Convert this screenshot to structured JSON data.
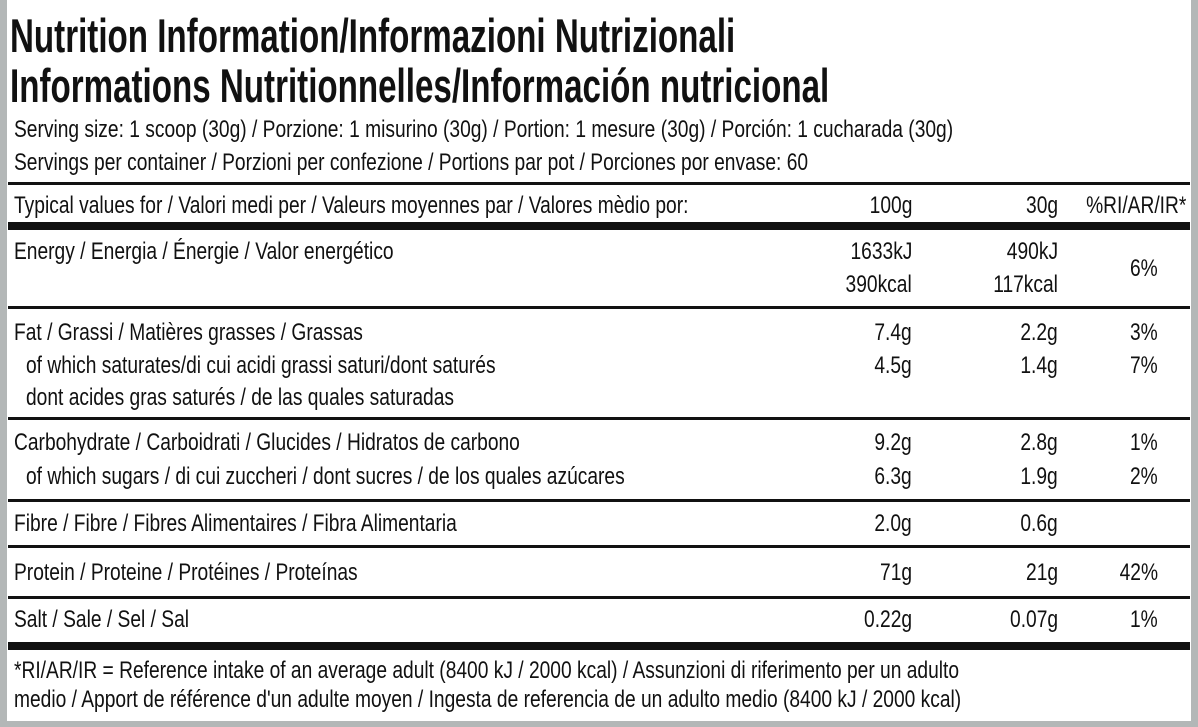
{
  "title": [
    "Nutrition Information/Informazioni Nutrizionali",
    "Informations Nutritionnelles/Información nutricional"
  ],
  "serving_size": "Serving size: 1 scoop (30g) / Porzione: 1 misurino (30g) / Portion: 1 mesure (30g) / Porción: 1 cucharada (30g)",
  "servings_per_container": "Servings per container / Porzioni per confezione / Portions par pot / Porciones por envase: 60",
  "header": {
    "label": "Typical values for / Valori medi per / Valeurs moyennes par / Valores mèdio por:",
    "col1": "100g",
    "col2": "30g",
    "col3": "%RI/AR/IR*"
  },
  "rows": [
    {
      "label": "Energy / Energia / Énergie / Valor energético",
      "v100": "1633kJ",
      "v30": "490kJ",
      "ri": "6%",
      "v100b": "390kcal",
      "v30b": "117kcal"
    },
    {
      "label": "Fat / Grassi / Matières grasses / Grassas",
      "v100": "7.4g",
      "v30": "2.2g",
      "ri": "3%"
    },
    {
      "label": " of which saturates/di cui acidi grassi saturi/dont saturés",
      "v100": "4.5g",
      "v30": "1.4g",
      "ri": "7%",
      "label2": " dont acides gras saturés / de las quales saturadas"
    },
    {
      "label": "Carbohydrate / Carboidrati / Glucides / Hidratos de carbono",
      "v100": "9.2g",
      "v30": "2.8g",
      "ri": "1%"
    },
    {
      "label": " of which sugars / di cui zuccheri / dont sucres / de los quales azúcares",
      "v100": "6.3g",
      "v30": "1.9g",
      "ri": "2%"
    },
    {
      "label": "Fibre / Fibre / Fibres Alimentaires / Fibra Alimentaria",
      "v100": "2.0g",
      "v30": "0.6g",
      "ri": ""
    },
    {
      "label": "Protein / Proteine / Protéines / Proteínas",
      "v100": "71g",
      "v30": "21g",
      "ri": "42%"
    },
    {
      "label": "Salt / Sale / Sel / Sal",
      "v100": "0.22g",
      "v30": "0.07g",
      "ri": "1%"
    }
  ],
  "footnote": [
    "*RI/AR/IR = Reference intake of an average adult (8400 kJ / 2000 kcal)  / Assunzioni di riferimento per un adulto",
    "medio / Apport de référence d'un adulte moyen / Ingesta de referencia de un adulto medio (8400 kJ / 2000 kcal)"
  ]
}
